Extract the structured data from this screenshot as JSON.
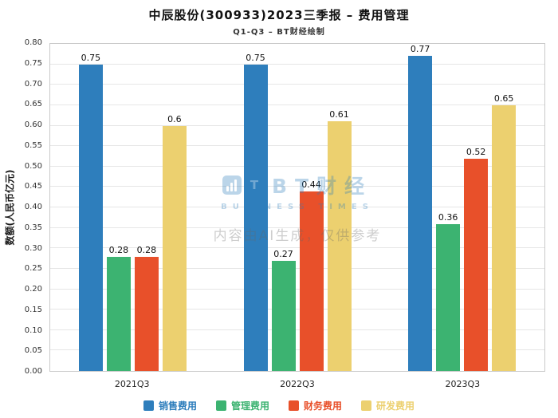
{
  "watermark": {
    "brand": "BT财经",
    "brand_en": "BUSINESS TIMES",
    "disclaimer": "内容由AI生成，仅供参考"
  },
  "chart_data": {
    "type": "bar",
    "title": "中辰股份(300933)2023三季报 – 费用管理",
    "subtitle": "Q1-Q3 – BT财经绘制",
    "xlabel": "",
    "ylabel": "数额(人民币亿元)",
    "ylim": [
      0,
      0.8
    ],
    "ytick_step": 0.05,
    "yticks": [
      "0.00",
      "0.05",
      "0.10",
      "0.15",
      "0.20",
      "0.25",
      "0.30",
      "0.35",
      "0.40",
      "0.45",
      "0.50",
      "0.55",
      "0.60",
      "0.65",
      "0.70",
      "0.75",
      "0.80"
    ],
    "grid": true,
    "legend_position": "bottom",
    "categories": [
      "2021Q3",
      "2022Q3",
      "2023Q3"
    ],
    "series": [
      {
        "name": "销售费用",
        "color": "#2e7ebc",
        "values": [
          0.75,
          0.75,
          0.77
        ],
        "labels": [
          "0.75",
          "0.75",
          "0.77"
        ]
      },
      {
        "name": "管理费用",
        "color": "#3cb371",
        "values": [
          0.28,
          0.27,
          0.36
        ],
        "labels": [
          "0.28",
          "0.27",
          "0.36"
        ]
      },
      {
        "name": "财务费用",
        "color": "#e8502a",
        "values": [
          0.28,
          0.44,
          0.52
        ],
        "labels": [
          "0.28",
          "0.44",
          "0.52"
        ]
      },
      {
        "name": "研发费用",
        "color": "#ecd06f",
        "values": [
          0.6,
          0.61,
          0.65
        ],
        "labels": [
          "0.6",
          "0.61",
          "0.65"
        ]
      }
    ]
  }
}
